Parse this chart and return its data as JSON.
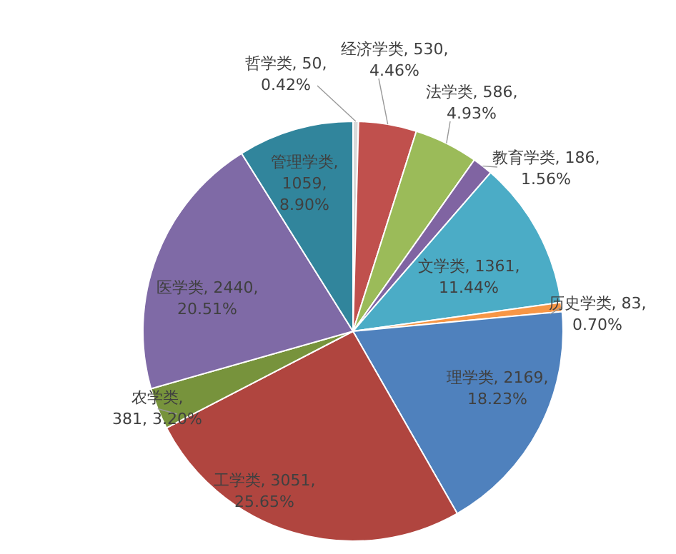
{
  "chart_data": {
    "type": "pie",
    "categories": [
      "哲学类",
      "经济学类",
      "法学类",
      "教育学类",
      "文学类",
      "历史学类",
      "理学类",
      "工学类",
      "农学类",
      "医学类",
      "管理学类"
    ],
    "values": [
      50,
      530,
      586,
      186,
      1361,
      83,
      2169,
      3051,
      381,
      2440,
      1059
    ],
    "colors": [
      "#d9d9d9",
      "#c0504d",
      "#9bbb59",
      "#8064a2",
      "#4bacc6",
      "#f79646",
      "#4f81bd",
      "#b0453f",
      "#77933c",
      "#7f6aa6",
      "#31859c"
    ],
    "value_labels": [
      ", 50, 0.42%",
      ", 530, 4.46%",
      ", 586, 4.93%",
      ", 186, 1.56%",
      ", 1361, 11.44%",
      ", 83, 0.70%",
      ", 2169, 18.23%",
      ", 3051, 25.65%",
      ", 381, 3.20%",
      ", 2440, 20.51%",
      ", 1059, 8.90%"
    ],
    "legend": false
  }
}
